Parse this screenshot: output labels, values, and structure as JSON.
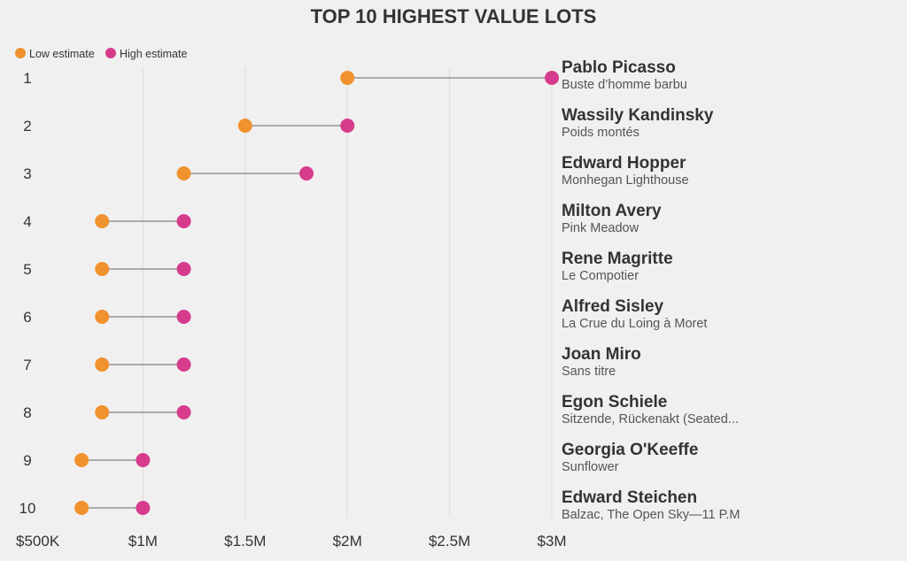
{
  "chart_data": {
    "type": "dumbbell",
    "title": "TOP 10 HIGHEST VALUE LOTS",
    "legend": {
      "placement": "top-left",
      "items": [
        {
          "name": "Low estimate",
          "color": "#f0922e"
        },
        {
          "name": "High estimate",
          "color": "#d63c8b"
        }
      ]
    },
    "x_axis": {
      "range": [
        500000,
        3000000
      ],
      "ticks": [
        500000,
        1000000,
        1500000,
        2000000,
        2500000,
        3000000
      ],
      "tick_labels": [
        "$500K",
        "$1M",
        "$1.5M",
        "$2M",
        "$2.5M",
        "$3M"
      ],
      "grid": true
    },
    "rows": [
      {
        "rank": "1",
        "artist": "Pablo Picasso",
        "work": "Buste d’homme barbu",
        "low": 2000000,
        "high": 3000000
      },
      {
        "rank": "2",
        "artist": "Wassily Kandinsky",
        "work": "Poids montés",
        "low": 1500000,
        "high": 2000000
      },
      {
        "rank": "3",
        "artist": "Edward Hopper",
        "work": "Monhegan Lighthouse",
        "low": 1200000,
        "high": 1800000
      },
      {
        "rank": "4",
        "artist": "Milton Avery",
        "work": "Pink Meadow",
        "low": 800000,
        "high": 1200000
      },
      {
        "rank": "5",
        "artist": "Rene Magritte",
        "work": "Le Compotier",
        "low": 800000,
        "high": 1200000
      },
      {
        "rank": "6",
        "artist": "Alfred Sisley",
        "work": "La Crue du Loing à Moret",
        "low": 800000,
        "high": 1200000
      },
      {
        "rank": "7",
        "artist": "Joan Miro",
        "work": "Sans titre",
        "low": 800000,
        "high": 1200000
      },
      {
        "rank": "8",
        "artist": "Egon Schiele",
        "work": "Sitzende, Rückenakt (Seated...",
        "low": 800000,
        "high": 1200000
      },
      {
        "rank": "9",
        "artist": "Georgia O'Keeffe",
        "work": "Sunflower",
        "low": 700000,
        "high": 1000000
      },
      {
        "rank": "10",
        "artist": "Edward Steichen",
        "work": "Balzac, The Open Sky—11 P.M",
        "low": 700000,
        "high": 1000000
      }
    ]
  }
}
